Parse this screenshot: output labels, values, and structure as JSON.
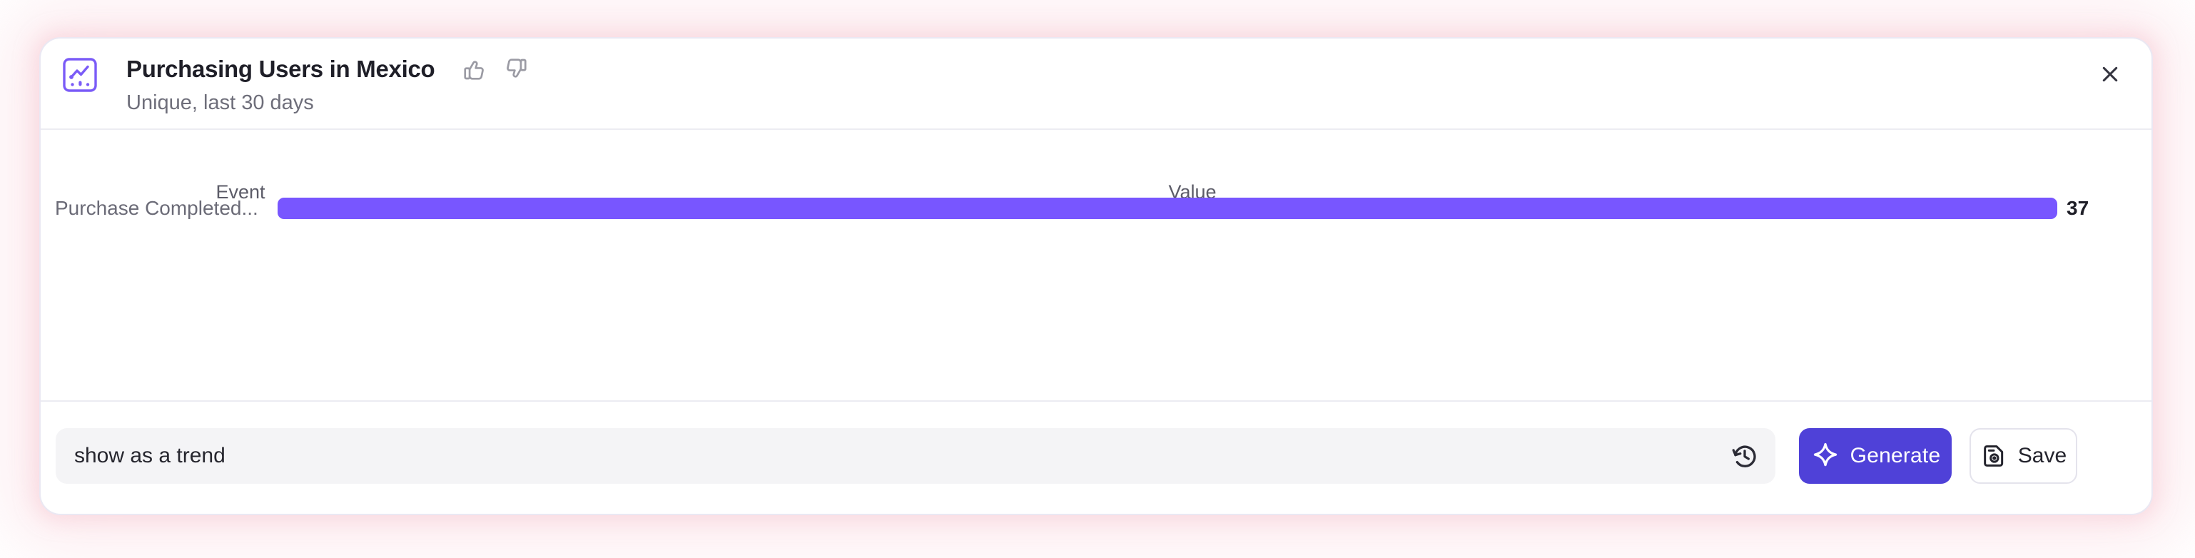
{
  "header": {
    "title": "Purchasing Users in Mexico",
    "subtitle": "Unique, last 30 days"
  },
  "chart_data": {
    "type": "bar",
    "orientation": "horizontal",
    "title": "Purchasing Users in Mexico",
    "subtitle": "Unique, last 30 days",
    "columns": [
      "Event",
      "Value"
    ],
    "categories": [
      "Purchase Completed..."
    ],
    "values": [
      37
    ],
    "value_labels": [
      "37"
    ],
    "xlim": [
      0,
      37
    ],
    "bar_color": "#7856ff",
    "grid": false,
    "legend": false
  },
  "footer": {
    "prompt_value": "show as a trend",
    "generate_label": "Generate",
    "save_label": "Save"
  },
  "icons": {
    "header_chart": "line-chart-in-square",
    "thumbs_up": "thumbs-up-outline",
    "thumbs_down": "thumbs-down-outline",
    "close": "x-mark",
    "history": "clock-restore",
    "sparkle": "four-point-star-outline",
    "save": "floppy-disk"
  },
  "colors": {
    "bar": "#7856ff",
    "generate_button": "#4f41d8",
    "header_icon": "#7a5bf7",
    "glow": "#f9c6d0"
  }
}
